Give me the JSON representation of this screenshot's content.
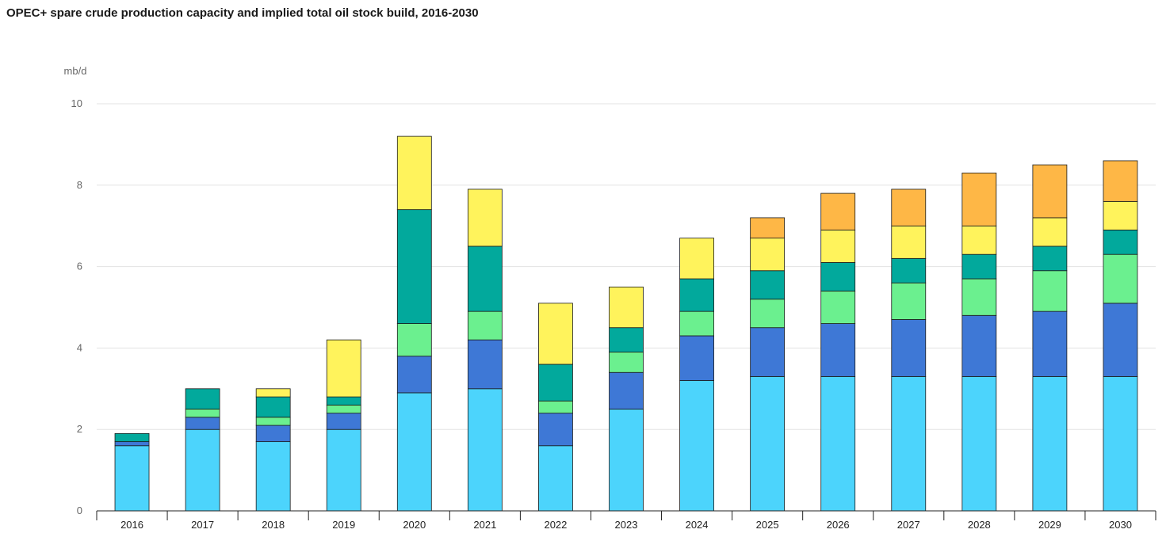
{
  "title": "OPEC+ spare crude production capacity and implied total oil stock build, 2016-2030",
  "chart_data": {
    "type": "bar",
    "stacked": true,
    "title": "OPEC+ spare crude production capacity and implied total oil stock build, 2016-2030",
    "unit_label": "mb/d",
    "ylim": [
      0,
      10
    ],
    "yticks": [
      0,
      2,
      4,
      6,
      8,
      10
    ],
    "grid": true,
    "legend": "none",
    "categories": [
      "2016",
      "2017",
      "2018",
      "2019",
      "2020",
      "2021",
      "2022",
      "2023",
      "2024",
      "2025",
      "2026",
      "2027",
      "2028",
      "2029",
      "2030"
    ],
    "series": [
      {
        "color": "#4cd4fc",
        "values": [
          1.6,
          2.0,
          1.7,
          2.0,
          2.9,
          3.0,
          1.6,
          2.5,
          3.2,
          3.3,
          3.3,
          3.3,
          3.3,
          3.3,
          3.3
        ]
      },
      {
        "color": "#3e78d6",
        "values": [
          0.1,
          0.3,
          0.4,
          0.4,
          0.9,
          1.2,
          0.8,
          0.9,
          1.1,
          1.2,
          1.3,
          1.4,
          1.5,
          1.6,
          1.8
        ]
      },
      {
        "color": "#6bf08f",
        "values": [
          0.0,
          0.2,
          0.2,
          0.2,
          0.8,
          0.7,
          0.3,
          0.5,
          0.6,
          0.7,
          0.8,
          0.9,
          0.9,
          1.0,
          1.2
        ]
      },
      {
        "color": "#02a99c",
        "values": [
          0.2,
          0.5,
          0.5,
          0.2,
          2.8,
          1.6,
          0.9,
          0.6,
          0.8,
          0.7,
          0.7,
          0.6,
          0.6,
          0.6,
          0.6
        ]
      },
      {
        "color": "#fff35c",
        "values": [
          0.0,
          0.0,
          0.2,
          1.4,
          1.8,
          1.4,
          1.5,
          1.0,
          1.0,
          0.8,
          0.8,
          0.8,
          0.7,
          0.7,
          0.7
        ]
      },
      {
        "color": "#feb746",
        "values": [
          0.0,
          0.0,
          0.0,
          0.0,
          0.0,
          0.0,
          0.0,
          0.0,
          0.0,
          0.5,
          0.9,
          0.9,
          1.3,
          1.3,
          1.0
        ]
      }
    ]
  }
}
